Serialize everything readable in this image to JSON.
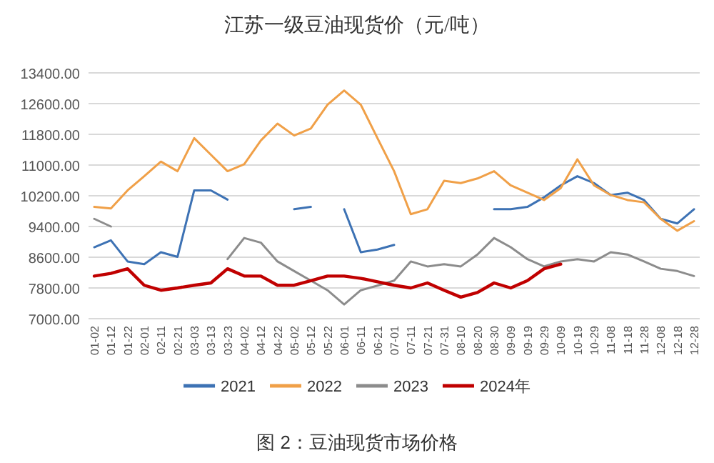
{
  "chart_data": {
    "type": "line",
    "title": "江苏一级豆油现货价（元/吨）",
    "annotations": [
      "图 2：豆油现货市场价格"
    ],
    "categories": [
      "01-02",
      "01-12",
      "01-22",
      "02-01",
      "02-11",
      "02-21",
      "03-03",
      "03-13",
      "03-23",
      "04-02",
      "04-12",
      "04-22",
      "05-02",
      "05-12",
      "05-22",
      "06-01",
      "06-11",
      "06-21",
      "07-01",
      "07-11",
      "07-21",
      "07-31",
      "08-10",
      "08-20",
      "08-30",
      "09-09",
      "09-19",
      "09-29",
      "10-09",
      "10-19",
      "10-29",
      "11-08",
      "11-18",
      "11-28",
      "12-08",
      "12-18",
      "12-28"
    ],
    "series": [
      {
        "name": "2021",
        "color": "#3d72b4",
        "values": [
          8860,
          9040,
          8490,
          8420,
          8730,
          8610,
          10340,
          10340,
          10100,
          null,
          null,
          null,
          9850,
          9910,
          null,
          9850,
          8730,
          8800,
          8920,
          null,
          null,
          null,
          null,
          null,
          9850,
          9850,
          9910,
          10160,
          10470,
          10710,
          10530,
          10220,
          10280,
          10090,
          9600,
          9480,
          9850
        ]
      },
      {
        "name": "2022",
        "color": "#f0a048",
        "values": [
          9910,
          9870,
          10340,
          10710,
          11090,
          10840,
          11700,
          11270,
          10840,
          11020,
          11640,
          12080,
          11770,
          11950,
          12570,
          12940,
          12570,
          11700,
          10840,
          9720,
          9850,
          10590,
          10530,
          10650,
          10840,
          10470,
          10280,
          10090,
          10400,
          11150,
          10470,
          10220,
          10090,
          10030,
          9600,
          9290,
          9540
        ]
      },
      {
        "name": "2023",
        "color": "#8c8c8c",
        "values": [
          9600,
          9400,
          null,
          null,
          null,
          null,
          null,
          null,
          8550,
          9100,
          8980,
          8490,
          8240,
          7990,
          7740,
          7370,
          7740,
          7860,
          7990,
          8490,
          8360,
          8420,
          8360,
          8670,
          9100,
          8860,
          8550,
          8360,
          8490,
          8550,
          8490,
          8730,
          8670,
          8490,
          8300,
          8240,
          8110
        ]
      },
      {
        "name": "2024年",
        "color": "#c00000",
        "values": [
          8110,
          8180,
          8300,
          7870,
          7740,
          7800,
          7870,
          7930,
          8300,
          8110,
          8110,
          7870,
          7870,
          7990,
          8110,
          8110,
          8050,
          7960,
          7870,
          7800,
          7930,
          7740,
          7560,
          7680,
          7930,
          7800,
          7990,
          8300,
          8420,
          null,
          null,
          null,
          null,
          null,
          null,
          null,
          null
        ]
      }
    ],
    "ylim": [
      7000,
      13400
    ],
    "yticks": [
      {
        "value": 7000,
        "label": "7000.00"
      },
      {
        "value": 7800,
        "label": "7800.00"
      },
      {
        "value": 8600,
        "label": "8600.00"
      },
      {
        "value": 9400,
        "label": "9400.00"
      },
      {
        "value": 10200,
        "label": "10200.00"
      },
      {
        "value": 11000,
        "label": "11000.00"
      },
      {
        "value": 11800,
        "label": "11800.00"
      },
      {
        "value": 12600,
        "label": "12600.00"
      },
      {
        "value": 13400,
        "label": "13400.00"
      }
    ],
    "grid": "y",
    "legend": "bottom",
    "marker": "none",
    "line_style": "solid"
  }
}
